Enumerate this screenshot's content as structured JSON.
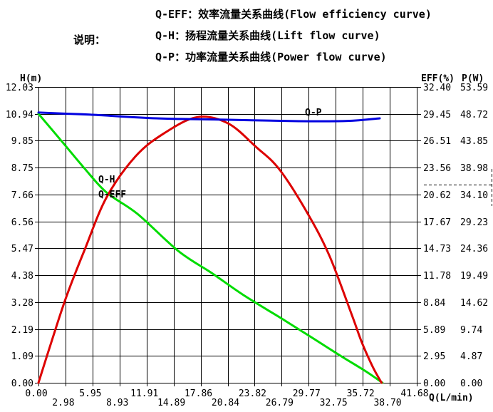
{
  "legend": {
    "caption": "说明：",
    "items": [
      "Q-EFF：效率流量关系曲线(Flow efficiency curve)",
      "Q-H：扬程流量关系曲线(Lift flow curve)",
      "Q-P：功率流量关系曲线(Power flow curve)"
    ]
  },
  "chart_data": {
    "type": "line",
    "grid": true,
    "x_axis": {
      "label": "Q(L/min)",
      "min": 0,
      "max": 41.68,
      "ticks": [
        "0.00",
        "2.98",
        "5.95",
        "8.93",
        "11.91",
        "14.89",
        "17.86",
        "20.84",
        "23.82",
        "26.79",
        "29.77",
        "32.75",
        "35.72",
        "38.70",
        "41.68"
      ]
    },
    "y_left": {
      "label": "H(m)",
      "min": 0,
      "max": 12.03,
      "ticks": [
        "12.03",
        "10.94",
        "9.85",
        "8.75",
        "7.66",
        "6.56",
        "5.47",
        "4.38",
        "3.28",
        "2.19",
        "1.09",
        "0.00"
      ]
    },
    "y_right_eff": {
      "label": "EFF(%)",
      "min": 0,
      "max": 32.4,
      "ticks": [
        "32.40",
        "29.45",
        "26.51",
        "23.56",
        "20.62",
        "17.67",
        "14.73",
        "11.78",
        "8.84",
        "5.89",
        "2.95",
        "0.00"
      ]
    },
    "y_right_p": {
      "label": "P(W)",
      "min": 0,
      "max": 53.59,
      "ticks": [
        "53.59",
        "48.72",
        "43.85",
        "38.98",
        "34.10",
        "29.23",
        "24.36",
        "19.49",
        "14.62",
        "9.74",
        "4.87",
        "0.00"
      ]
    },
    "series": [
      {
        "name": "Q-H",
        "y_axis": "y_left",
        "color": "#00dc00",
        "points": [
          [
            0,
            10.94
          ],
          [
            2.5,
            9.85
          ],
          [
            5.0,
            8.75
          ],
          [
            7.5,
            7.74
          ],
          [
            10.9,
            6.87
          ],
          [
            15.4,
            5.36
          ],
          [
            19.1,
            4.46
          ],
          [
            22.7,
            3.54
          ],
          [
            27.2,
            2.52
          ],
          [
            30.5,
            1.75
          ],
          [
            33.4,
            1.07
          ],
          [
            36.0,
            0.48
          ],
          [
            37.9,
            0.0
          ]
        ]
      },
      {
        "name": "Q-EFF",
        "y_axis": "y_right_eff",
        "color": "#dd0000",
        "points": [
          [
            0,
            0
          ],
          [
            1.5,
            4.7
          ],
          [
            3.1,
            9.5
          ],
          [
            5.1,
            14.6
          ],
          [
            7.5,
            20.3
          ],
          [
            10.7,
            24.8
          ],
          [
            13.8,
            27.3
          ],
          [
            17.5,
            29.1
          ],
          [
            20.9,
            28.4
          ],
          [
            24.0,
            25.8
          ],
          [
            26.6,
            23.3
          ],
          [
            29.8,
            18.3
          ],
          [
            32.1,
            13.8
          ],
          [
            34.5,
            7.5
          ],
          [
            35.6,
            4.5
          ],
          [
            36.8,
            1.8
          ],
          [
            37.8,
            0
          ]
        ]
      },
      {
        "name": "Q-P",
        "y_axis": "y_right_p",
        "color": "#0000e0",
        "points": [
          [
            0,
            48.95
          ],
          [
            3.0,
            48.75
          ],
          [
            6.0,
            48.56
          ],
          [
            13.0,
            47.91
          ],
          [
            20.9,
            47.65
          ],
          [
            28.7,
            47.39
          ],
          [
            33.0,
            47.39
          ],
          [
            35.0,
            47.52
          ],
          [
            37.6,
            47.91
          ]
        ]
      }
    ]
  }
}
